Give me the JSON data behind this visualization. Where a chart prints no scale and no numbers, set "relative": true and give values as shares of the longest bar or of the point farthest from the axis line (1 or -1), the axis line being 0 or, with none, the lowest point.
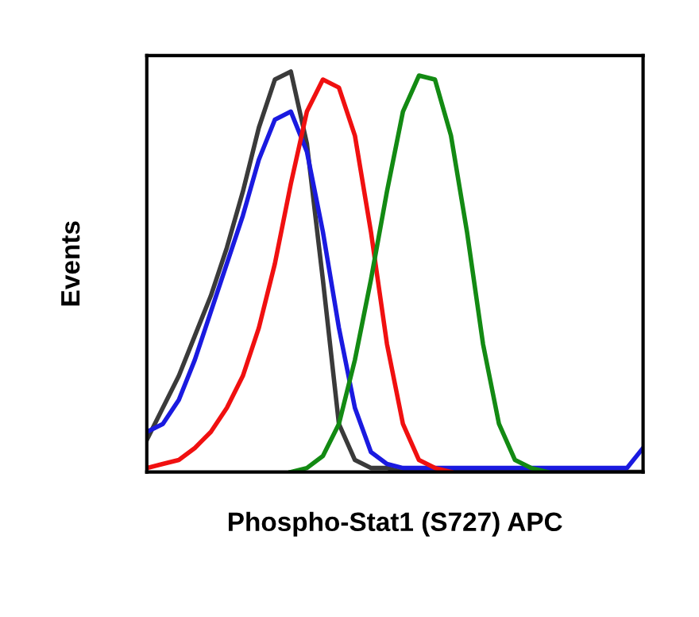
{
  "chart_data": {
    "type": "line",
    "relative": true,
    "xlabel": "Phospho-Stat1 (S727) APC",
    "ylabel": "Events",
    "tick_labels": false,
    "marker": "none",
    "line_style": "solid",
    "categories": [
      null,
      null,
      null,
      null,
      null,
      null,
      null,
      null,
      null,
      null,
      null,
      null,
      null,
      null,
      null,
      null,
      null,
      null,
      null,
      null,
      null,
      null,
      null,
      null,
      null,
      null,
      null,
      null,
      null,
      null,
      null,
      null
    ],
    "series": [
      {
        "color": "#3a3a3a",
        "values": [
          0.08,
          0.16,
          0.24,
          0.34,
          0.44,
          0.56,
          0.7,
          0.86,
          0.98,
          1.0,
          0.82,
          0.48,
          0.12,
          0.03,
          0.01,
          0.01,
          0,
          0,
          0,
          0,
          0,
          0,
          0,
          0,
          0,
          0,
          0,
          0,
          0,
          0,
          0,
          0
        ]
      },
      {
        "color": "#1a1ae0",
        "values": [
          0.1,
          0.12,
          0.18,
          0.28,
          0.4,
          0.52,
          0.64,
          0.78,
          0.88,
          0.9,
          0.8,
          0.6,
          0.36,
          0.16,
          0.05,
          0.02,
          0.01,
          0.01,
          0.01,
          0.01,
          0.01,
          0.01,
          0.01,
          0.01,
          0.01,
          0.01,
          0.01,
          0.01,
          0.01,
          0.01,
          0.01,
          0.06
        ]
      },
      {
        "color": "#f01010",
        "values": [
          0.01,
          0.02,
          0.03,
          0.06,
          0.1,
          0.16,
          0.24,
          0.36,
          0.52,
          0.72,
          0.9,
          0.98,
          0.96,
          0.84,
          0.6,
          0.32,
          0.12,
          0.03,
          0.01,
          0,
          null,
          null,
          null,
          null,
          null,
          null,
          null,
          null,
          null,
          null,
          null,
          null
        ]
      },
      {
        "color": "#138a13",
        "values": [
          null,
          null,
          null,
          null,
          null,
          null,
          null,
          null,
          null,
          0,
          0.01,
          0.04,
          0.12,
          0.28,
          0.48,
          0.7,
          0.9,
          0.99,
          0.98,
          0.84,
          0.6,
          0.32,
          0.12,
          0.03,
          0.01,
          0,
          null,
          null,
          null,
          null,
          null,
          null
        ]
      }
    ]
  }
}
